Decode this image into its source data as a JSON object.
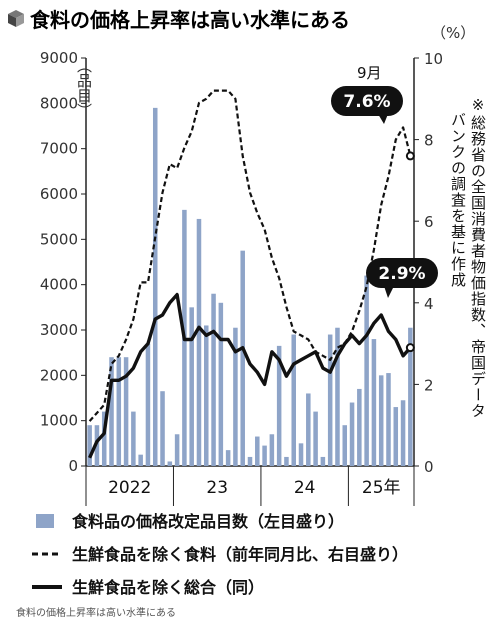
{
  "title": "食料の価格上昇率は高い水準にある",
  "caption": "食料の価格上昇率は高い水準にある",
  "note": [
    "※総務省の全国消費者物価指数、帝国データ",
    "バンクの調査を基に作成"
  ],
  "label_month": "9月",
  "callout_food": "7.6%",
  "callout_total": "2.9%",
  "chart_data": {
    "type": "bar+line",
    "x_labels": [
      "2022",
      "23",
      "24",
      "25年"
    ],
    "y_left": {
      "label": "（品目）",
      "ticks": [
        "0",
        "1000",
        "2000",
        "3000",
        "4000",
        "5000",
        "6000",
        "7000",
        "8000",
        "9000"
      ],
      "range": [
        0,
        9000
      ]
    },
    "y_right": {
      "label": "（%）",
      "ticks": [
        "0",
        "2",
        "4",
        "6",
        "8",
        "10"
      ],
      "range": [
        0,
        10
      ]
    },
    "months_start": "2022-01",
    "months_end": "2025-09",
    "series": [
      {
        "name": "食料品の価格改定品目数（左目盛り）",
        "type": "bar",
        "color": "#8ea4c8",
        "values": [
          900,
          900,
          1200,
          2400,
          2400,
          2400,
          1200,
          250,
          2700,
          7900,
          1650,
          100,
          700,
          5650,
          3500,
          5450,
          3100,
          3800,
          3600,
          350,
          3050,
          4750,
          200,
          650,
          450,
          700,
          2650,
          200,
          2900,
          500,
          1600,
          1200,
          200,
          2900,
          3050,
          900,
          1400,
          1700,
          4200,
          2800,
          2000,
          2050,
          1300,
          1450,
          3050
        ]
      },
      {
        "name": "生鮮食品を除く食料（前年同月比、右目盛り）",
        "type": "line",
        "style": "dashed",
        "color": "#111111",
        "values": [
          1.1,
          1.3,
          1.5,
          2.5,
          2.7,
          3.1,
          3.6,
          4.5,
          4.5,
          5.6,
          6.7,
          7.4,
          7.3,
          7.8,
          8.2,
          8.9,
          9.0,
          9.2,
          9.2,
          9.2,
          9.0,
          7.6,
          6.7,
          6.2,
          5.8,
          5.1,
          4.6,
          3.9,
          3.3,
          3.2,
          3.1,
          2.8,
          2.7,
          2.6,
          2.9,
          3.0,
          3.3,
          3.8,
          4.4,
          5.3,
          6.4,
          7.1,
          8.0,
          8.3,
          7.6
        ]
      },
      {
        "name": "生鮮食品を除く総合（同）",
        "type": "line",
        "style": "solid",
        "color": "#111111",
        "values": [
          0.2,
          0.6,
          0.8,
          2.1,
          2.1,
          2.2,
          2.4,
          2.8,
          3.0,
          3.6,
          3.7,
          4.0,
          4.2,
          3.1,
          3.1,
          3.4,
          3.2,
          3.3,
          3.1,
          3.1,
          2.8,
          2.9,
          2.5,
          2.3,
          2.0,
          2.8,
          2.6,
          2.2,
          2.5,
          2.6,
          2.7,
          2.8,
          2.4,
          2.3,
          2.7,
          3.0,
          3.2,
          3.0,
          3.2,
          3.5,
          3.7,
          3.3,
          3.1,
          2.7,
          2.9
        ]
      }
    ]
  }
}
